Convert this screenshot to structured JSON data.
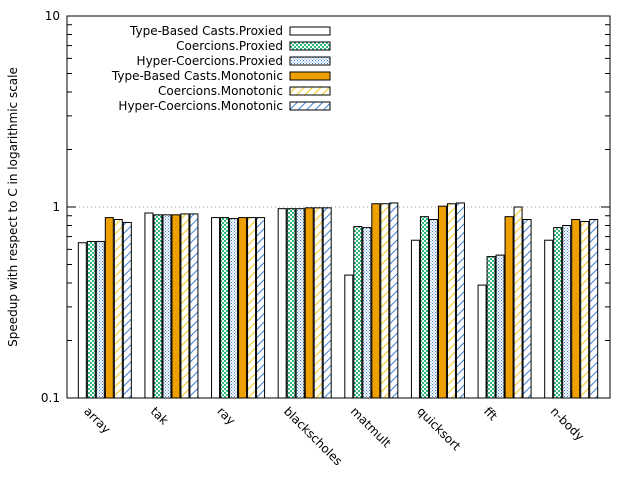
{
  "chart_data": {
    "type": "bar",
    "ylabel": "Speedup with respect to C in logarithmic scale",
    "yscale": "log",
    "ylim": [
      0.1,
      10
    ],
    "yticks": [
      "0.1",
      "1",
      "10"
    ],
    "reference_line": 1,
    "grid": false,
    "legend_position": "top-left",
    "categories": [
      "array",
      "tak",
      "ray",
      "blackscholes",
      "matmult",
      "quicksort",
      "fft",
      "n-body"
    ],
    "series": [
      {
        "name": "Type-Based Casts.Proxied",
        "pattern": "solid-white",
        "values": [
          0.65,
          0.93,
          0.88,
          0.98,
          0.44,
          0.67,
          0.39,
          0.67
        ]
      },
      {
        "name": "Coercions.Proxied",
        "pattern": "green-check",
        "values": [
          0.66,
          0.91,
          0.88,
          0.98,
          0.79,
          0.89,
          0.55,
          0.78
        ]
      },
      {
        "name": "Hyper-Coercions.Proxied",
        "pattern": "blue-dots",
        "values": [
          0.66,
          0.91,
          0.87,
          0.98,
          0.78,
          0.86,
          0.56,
          0.8
        ]
      },
      {
        "name": "Type-Based Casts.Monotonic",
        "pattern": "solid-orange",
        "values": [
          0.88,
          0.91,
          0.88,
          0.99,
          1.04,
          1.01,
          0.89,
          0.86
        ]
      },
      {
        "name": "Coercions.Monotonic",
        "pattern": "yellow-diag",
        "values": [
          0.86,
          0.92,
          0.88,
          0.99,
          1.04,
          1.04,
          1.0,
          0.84
        ]
      },
      {
        "name": "Hyper-Coercions.Monotonic",
        "pattern": "blue-diag",
        "values": [
          0.83,
          0.92,
          0.88,
          0.99,
          1.05,
          1.05,
          0.86,
          0.86
        ]
      }
    ]
  },
  "colors": {
    "axis": "#000000",
    "reference_line": "#a0a0a0",
    "green": "#2eb87a",
    "blue": "#3a7ecf",
    "orange": "#eea000",
    "yellow": "#f5d85a"
  }
}
